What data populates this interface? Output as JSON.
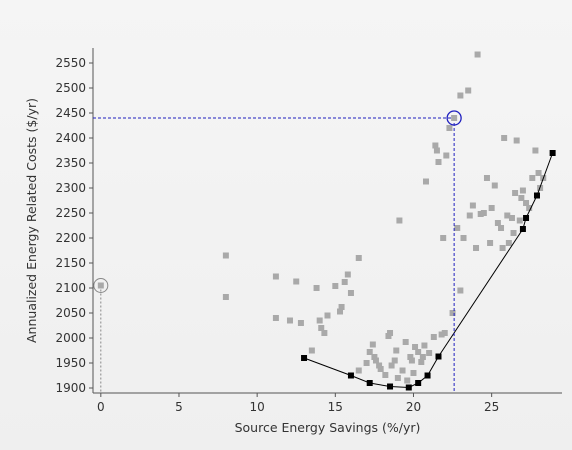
{
  "chart_data": {
    "type": "scatter",
    "xlabel": "Source Energy Savings (%/yr)",
    "ylabel": "Annualized Energy Related Costs ($/yr)",
    "xlim": [
      -0.5,
      29.5
    ],
    "ylim": [
      1890,
      2580
    ],
    "x_ticks": [
      0,
      5,
      10,
      15,
      20,
      25
    ],
    "y_ticks": [
      1900,
      1950,
      2000,
      2050,
      2100,
      2150,
      2200,
      2250,
      2300,
      2350,
      2400,
      2450,
      2500,
      2550
    ],
    "grid": false,
    "colors": {
      "points": "#a9a9a9",
      "frontier": "#000000",
      "selection": "#1f1fbf",
      "baseline": "#888888"
    },
    "points": [
      [
        8.0,
        2165
      ],
      [
        8.0,
        2082
      ],
      [
        11.2,
        2123
      ],
      [
        11.2,
        2040
      ],
      [
        12.1,
        2035
      ],
      [
        12.5,
        2113
      ],
      [
        12.8,
        2030
      ],
      [
        13.5,
        1975
      ],
      [
        13.8,
        2100
      ],
      [
        14.0,
        2035
      ],
      [
        14.1,
        2020
      ],
      [
        14.3,
        2010
      ],
      [
        14.5,
        2045
      ],
      [
        15.0,
        2104
      ],
      [
        15.3,
        2053
      ],
      [
        15.4,
        2062
      ],
      [
        15.6,
        2112
      ],
      [
        15.8,
        2127
      ],
      [
        16.0,
        2090
      ],
      [
        16.5,
        2160
      ],
      [
        16.5,
        1935
      ],
      [
        17.0,
        1950
      ],
      [
        17.2,
        1972
      ],
      [
        17.4,
        1987
      ],
      [
        17.5,
        1962
      ],
      [
        17.6,
        1955
      ],
      [
        17.8,
        1945
      ],
      [
        17.9,
        1938
      ],
      [
        18.2,
        1926
      ],
      [
        18.4,
        2004
      ],
      [
        18.5,
        2010
      ],
      [
        18.6,
        1945
      ],
      [
        18.8,
        1955
      ],
      [
        18.9,
        1975
      ],
      [
        19.0,
        1920
      ],
      [
        19.1,
        2235
      ],
      [
        19.3,
        1935
      ],
      [
        19.5,
        1992
      ],
      [
        19.6,
        1915
      ],
      [
        19.8,
        1962
      ],
      [
        19.9,
        1955
      ],
      [
        20.0,
        1930
      ],
      [
        20.1,
        1982
      ],
      [
        20.3,
        1972
      ],
      [
        20.5,
        1952
      ],
      [
        20.6,
        1962
      ],
      [
        20.7,
        1985
      ],
      [
        20.8,
        2313
      ],
      [
        21.0,
        1970
      ],
      [
        21.3,
        2002
      ],
      [
        21.4,
        2385
      ],
      [
        21.5,
        2375
      ],
      [
        21.6,
        2352
      ],
      [
        21.8,
        2007
      ],
      [
        21.9,
        2200
      ],
      [
        22.0,
        2010
      ],
      [
        22.1,
        2365
      ],
      [
        22.3,
        2420
      ],
      [
        22.5,
        2050
      ],
      [
        22.8,
        2220
      ],
      [
        23.0,
        2095
      ],
      [
        23.0,
        2485
      ],
      [
        23.2,
        2200
      ],
      [
        23.5,
        2495
      ],
      [
        23.6,
        2245
      ],
      [
        23.8,
        2265
      ],
      [
        24.0,
        2180
      ],
      [
        24.1,
        2567
      ],
      [
        24.3,
        2248
      ],
      [
        24.5,
        2250
      ],
      [
        24.7,
        2320
      ],
      [
        24.9,
        2190
      ],
      [
        25.0,
        2260
      ],
      [
        25.2,
        2305
      ],
      [
        25.4,
        2230
      ],
      [
        25.6,
        2220
      ],
      [
        25.7,
        2180
      ],
      [
        25.8,
        2400
      ],
      [
        26.0,
        2245
      ],
      [
        26.1,
        2190
      ],
      [
        26.3,
        2240
      ],
      [
        26.4,
        2210
      ],
      [
        26.5,
        2290
      ],
      [
        26.6,
        2395
      ],
      [
        26.8,
        2235
      ],
      [
        26.9,
        2280
      ],
      [
        27.0,
        2295
      ],
      [
        27.2,
        2270
      ],
      [
        27.4,
        2260
      ],
      [
        27.6,
        2320
      ],
      [
        27.8,
        2375
      ],
      [
        28.0,
        2330
      ],
      [
        28.1,
        2300
      ],
      [
        28.3,
        2320
      ]
    ],
    "frontier": [
      [
        13.0,
        1960
      ],
      [
        16.0,
        1925
      ],
      [
        17.2,
        1910
      ],
      [
        18.5,
        1903
      ],
      [
        19.7,
        1901
      ],
      [
        20.3,
        1910
      ],
      [
        20.9,
        1925
      ],
      [
        21.6,
        1963
      ],
      [
        27.0,
        2218
      ],
      [
        27.2,
        2240
      ],
      [
        27.9,
        2285
      ],
      [
        28.9,
        2370
      ]
    ],
    "baseline_point": [
      0,
      2105
    ],
    "selected_point": [
      22.6,
      2440
    ]
  }
}
